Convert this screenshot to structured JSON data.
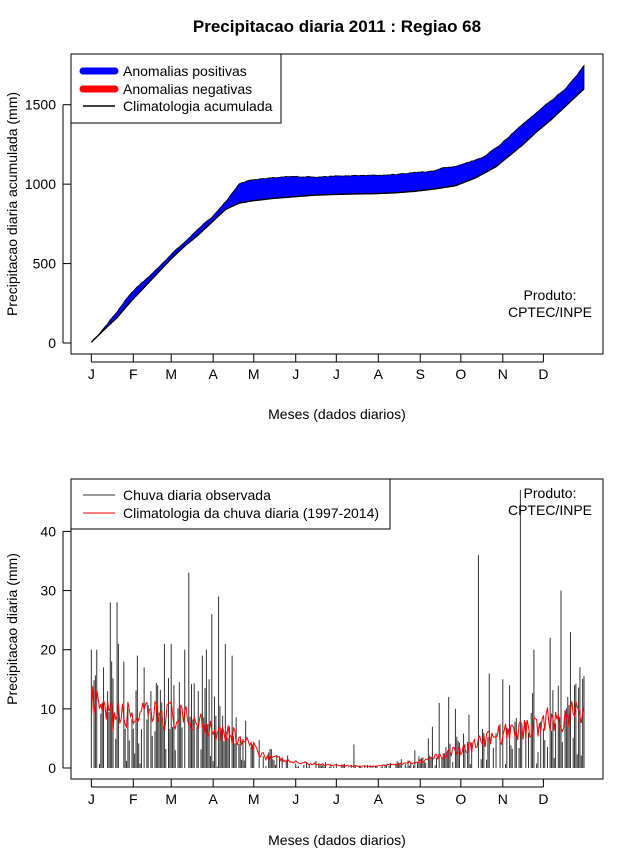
{
  "figure_title": "Precipitacao diaria 2011 : Regiao 68",
  "credit": {
    "line1": "Produto:",
    "line2": "CPTEC/INPE"
  },
  "colors": {
    "positive": "#0000ff",
    "negative": "#ff0000",
    "climatology": "#000000",
    "observed": "#333333",
    "clim_daily": "#ff0000",
    "background": "#ffffff"
  },
  "chart_data": [
    {
      "type": "area",
      "title": "Precipitacao diaria 2011 : Regiao 68",
      "xlabel": "Meses (dados diarios)",
      "ylabel": "Precipitacao diaria acumulada (mm)",
      "xlim": [
        0,
        365
      ],
      "ylim": [
        0,
        1750
      ],
      "month_ticks": [
        "J",
        "F",
        "M",
        "A",
        "M",
        "J",
        "J",
        "A",
        "S",
        "O",
        "N",
        "D"
      ],
      "month_starts": [
        1,
        32,
        60,
        91,
        121,
        152,
        182,
        213,
        244,
        274,
        305,
        335
      ],
      "yticks": [
        0,
        500,
        1000,
        1500
      ],
      "legend": [
        "Anomalias positivas",
        "Anomalias negativas",
        "Climatologia acumulada"
      ],
      "observed_cumulative": {
        "day": [
          1,
          10,
          20,
          30,
          40,
          50,
          60,
          70,
          80,
          90,
          100,
          110,
          120,
          135,
          150,
          165,
          180,
          195,
          210,
          225,
          240,
          255,
          260,
          275,
          290,
          300,
          310,
          320,
          330,
          340,
          350,
          360,
          365
        ],
        "value": [
          5,
          90,
          200,
          310,
          390,
          470,
          560,
          640,
          720,
          790,
          890,
          1000,
          1030,
          1040,
          1045,
          1048,
          1050,
          1052,
          1055,
          1060,
          1075,
          1085,
          1100,
          1125,
          1170,
          1230,
          1300,
          1380,
          1450,
          1520,
          1590,
          1690,
          1750
        ]
      },
      "climatology_cumulative": {
        "day": [
          1,
          10,
          20,
          30,
          40,
          50,
          60,
          70,
          80,
          90,
          100,
          110,
          120,
          135,
          150,
          165,
          180,
          195,
          210,
          225,
          240,
          255,
          270,
          285,
          300,
          310,
          320,
          330,
          340,
          350,
          360,
          365
        ],
        "value": [
          5,
          80,
          160,
          260,
          350,
          440,
          530,
          610,
          680,
          760,
          840,
          880,
          895,
          910,
          920,
          930,
          935,
          938,
          940,
          945,
          955,
          970,
          990,
          1040,
          1110,
          1180,
          1250,
          1330,
          1400,
          1480,
          1560,
          1600
        ]
      }
    },
    {
      "type": "line",
      "xlabel": "Meses (dados diarios)",
      "ylabel": "Precipitacao diaria (mm)",
      "xlim": [
        0,
        365
      ],
      "ylim": [
        0,
        47
      ],
      "month_ticks": [
        "J",
        "F",
        "M",
        "A",
        "M",
        "J",
        "J",
        "A",
        "S",
        "O",
        "N",
        "D"
      ],
      "month_starts": [
        1,
        32,
        60,
        91,
        121,
        152,
        182,
        213,
        244,
        274,
        305,
        335
      ],
      "yticks": [
        0,
        10,
        20,
        30,
        40
      ],
      "legend": [
        "Chuva diaria observada",
        "Climatologia da chuva diaria (1997-2014)"
      ],
      "observed_daily_peaks": {
        "day": [
          1,
          5,
          10,
          15,
          16,
          20,
          21,
          25,
          28,
          35,
          40,
          45,
          50,
          55,
          60,
          62,
          70,
          73,
          80,
          83,
          86,
          88,
          90,
          95,
          100,
          105,
          115,
          120,
          135,
          160,
          195,
          230,
          240,
          250,
          253,
          258,
          265,
          270,
          280,
          287,
          295,
          305,
          310,
          318,
          328,
          340,
          348,
          355,
          358,
          362
        ],
        "value": [
          20,
          20,
          17,
          28,
          18,
          28,
          21,
          18,
          10,
          19,
          17,
          13,
          14,
          21,
          21,
          14,
          20,
          33,
          13,
          19,
          20,
          15,
          26,
          29,
          21,
          19,
          8,
          4,
          1.5,
          1,
          4,
          1.5,
          3,
          5,
          7,
          11,
          12,
          10,
          9,
          36,
          16,
          15,
          14,
          47,
          20,
          22,
          30,
          23,
          14,
          17
        ]
      },
      "climatology_daily": {
        "day": [
          1,
          10,
          20,
          30,
          40,
          50,
          60,
          70,
          80,
          90,
          100,
          110,
          120,
          130,
          140,
          150,
          160,
          170,
          180,
          190,
          200,
          210,
          220,
          230,
          240,
          250,
          260,
          270,
          280,
          290,
          300,
          310,
          320,
          330,
          340,
          350,
          360,
          365
        ],
        "value": [
          11,
          9,
          8.5,
          9,
          8.5,
          9,
          9,
          8,
          8,
          7,
          6,
          5,
          3.5,
          2,
          1.5,
          1,
          0.8,
          0.6,
          0.5,
          0.4,
          0.3,
          0.3,
          0.5,
          0.8,
          1,
          1.5,
          2,
          3,
          3.5,
          4.5,
          5.5,
          6,
          6.5,
          7.5,
          8,
          8.5,
          9,
          9.5
        ]
      }
    }
  ]
}
